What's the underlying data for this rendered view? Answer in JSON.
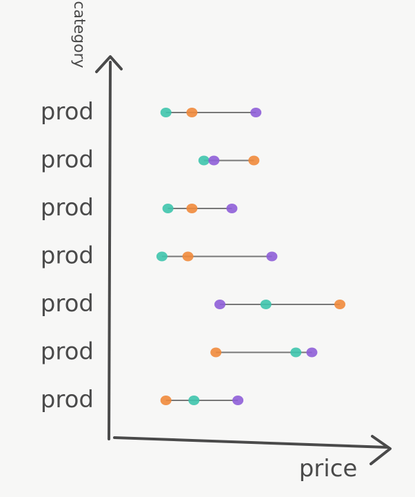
{
  "chart_data": {
    "type": "scatter",
    "subtype": "dumbbell",
    "xlabel": "price",
    "ylabel": "category",
    "categories": [
      "prod",
      "prod",
      "prod",
      "prod",
      "prod",
      "prod",
      "prod"
    ],
    "xlim": [
      0,
      100
    ],
    "series": [
      {
        "values": [
          3,
          22,
          4,
          1,
          53,
          68,
          17
        ]
      },
      {
        "values": [
          16,
          47,
          16,
          14,
          90,
          28,
          3
        ]
      },
      {
        "values": [
          48,
          27,
          36,
          56,
          30,
          76,
          39
        ]
      }
    ],
    "colors": [
      "#3ec4ad",
      "#f08a3c",
      "#8e5ed8"
    ],
    "grid": false,
    "legend": "none"
  }
}
